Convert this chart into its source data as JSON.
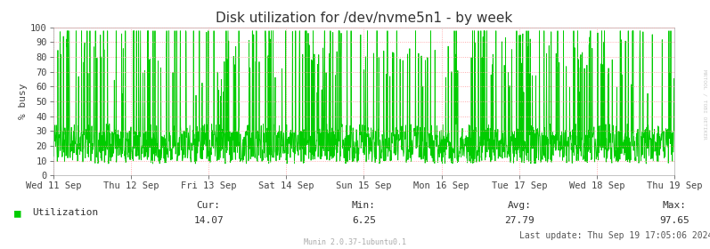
{
  "title": "Disk utilization for /dev/nvme5n1 - by week",
  "ylabel": "% busy",
  "ylim": [
    0,
    100
  ],
  "yticks": [
    0,
    10,
    20,
    30,
    40,
    50,
    60,
    70,
    80,
    90,
    100
  ],
  "x_labels": [
    "Wed 11 Sep",
    "Thu 12 Sep",
    "Fri 13 Sep",
    "Sat 14 Sep",
    "Sun 15 Sep",
    "Mon 16 Sep",
    "Tue 17 Sep",
    "Wed 18 Sep",
    "Thu 19 Sep"
  ],
  "legend_label": "Utilization",
  "cur_label": "Cur:",
  "cur": "14.07",
  "min_label": "Min:",
  "min": "6.25",
  "avg_label": "Avg:",
  "avg": "27.79",
  "max_label": "Max:",
  "max": "97.65",
  "last_update": "Last update: Thu Sep 19 17:05:06 2024",
  "munin_version": "Munin 2.0.37-1ubuntu0.1",
  "line_color": "#00CC00",
  "bg_color": "#FFFFFF",
  "plot_bg_color": "#FFFFFF",
  "grid_h_color": "#FF9999",
  "grid_v_color": "#FF9999",
  "title_fontsize": 11,
  "axis_label_fontsize": 8,
  "tick_fontsize": 7.5,
  "legend_fontsize": 8,
  "watermark_color": "#CCCCCC",
  "right_label": "MRTOOL / TOBI OETIKER",
  "num_points": 2016,
  "seed": 12345
}
